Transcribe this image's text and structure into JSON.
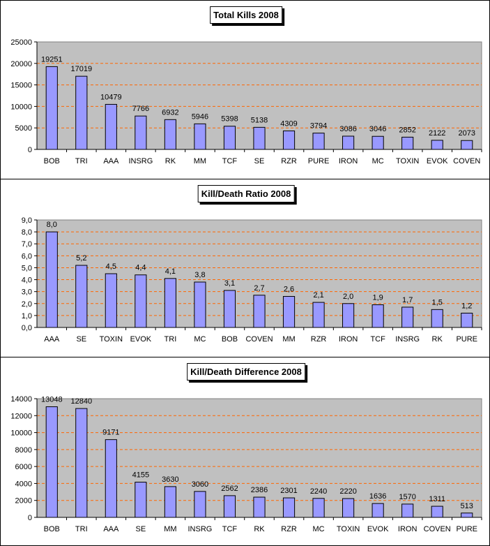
{
  "chart_data": [
    {
      "type": "bar",
      "title": "Total Kills 2008",
      "categories": [
        "BOB",
        "TRI",
        "AAA",
        "INSRG",
        "RK",
        "MM",
        "TCF",
        "SE",
        "RZR",
        "PURE",
        "IRON",
        "MC",
        "TOXIN",
        "EVOK",
        "COVEN"
      ],
      "values": [
        19251,
        17019,
        10479,
        7766,
        6932,
        5946,
        5398,
        5138,
        4309,
        3794,
        3086,
        3046,
        2852,
        2122,
        2073
      ],
      "labels": [
        "19251",
        "17019",
        "10479",
        "7766",
        "6932",
        "5946",
        "5398",
        "5138",
        "4309",
        "3794",
        "3086",
        "3046",
        "2852",
        "2122",
        "2073"
      ],
      "ylim": [
        0,
        25000
      ],
      "yticks": [
        "0",
        "5000",
        "10000",
        "15000",
        "20000",
        "25000"
      ],
      "grid": true
    },
    {
      "type": "bar",
      "title": "Kill/Death Ratio 2008",
      "categories": [
        "AAA",
        "SE",
        "TOXIN",
        "EVOK",
        "TRI",
        "MC",
        "BOB",
        "COVEN",
        "MM",
        "RZR",
        "IRON",
        "TCF",
        "INSRG",
        "RK",
        "PURE"
      ],
      "values": [
        8.0,
        5.2,
        4.5,
        4.4,
        4.1,
        3.8,
        3.1,
        2.7,
        2.6,
        2.1,
        2.0,
        1.9,
        1.7,
        1.5,
        1.2
      ],
      "labels": [
        "8,0",
        "5,2",
        "4,5",
        "4,4",
        "4,1",
        "3,8",
        "3,1",
        "2,7",
        "2,6",
        "2,1",
        "2,0",
        "1,9",
        "1,7",
        "1,5",
        "1,2"
      ],
      "ylim": [
        0,
        9
      ],
      "yticks": [
        "0,0",
        "1,0",
        "2,0",
        "3,0",
        "4,0",
        "5,0",
        "6,0",
        "7,0",
        "8,0",
        "9,0"
      ],
      "grid": true
    },
    {
      "type": "bar",
      "title": "Kill/Death Difference 2008",
      "categories": [
        "BOB",
        "TRI",
        "AAA",
        "SE",
        "MM",
        "INSRG",
        "TCF",
        "RK",
        "RZR",
        "MC",
        "TOXIN",
        "EVOK",
        "IRON",
        "COVEN",
        "PURE"
      ],
      "values": [
        13048,
        12840,
        9171,
        4155,
        3630,
        3060,
        2562,
        2386,
        2301,
        2240,
        2220,
        1636,
        1570,
        1311,
        513
      ],
      "labels": [
        "13048",
        "12840",
        "9171",
        "4155",
        "3630",
        "3060",
        "2562",
        "2386",
        "2301",
        "2240",
        "2220",
        "1636",
        "1570",
        "1311",
        "513"
      ],
      "ylim": [
        0,
        14000
      ],
      "yticks": [
        "0",
        "2000",
        "4000",
        "6000",
        "8000",
        "10000",
        "12000",
        "14000"
      ],
      "grid": true
    }
  ],
  "colors": {
    "bar": "#9999ff",
    "plot_bg": "#c0c0c0",
    "grid": "#ff6600"
  }
}
